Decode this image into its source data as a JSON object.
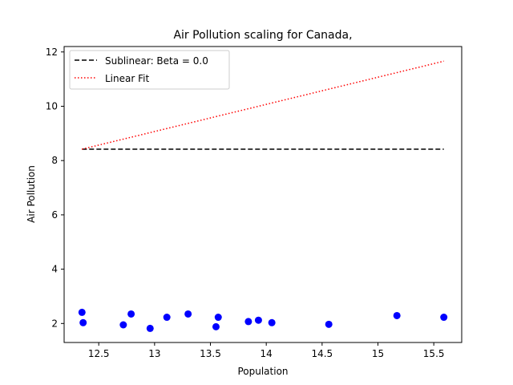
{
  "chart_data": {
    "type": "scatter",
    "title": "Air Pollution scaling for Canada,",
    "xlabel": "Population",
    "ylabel": "Air Pollution",
    "xlim": [
      12.19,
      15.75
    ],
    "ylim": [
      1.3,
      12.2
    ],
    "xticks": [
      12.5,
      13.0,
      13.5,
      14.0,
      14.5,
      15.0,
      15.5
    ],
    "yticks": [
      2,
      4,
      6,
      8,
      10,
      12
    ],
    "grid": false,
    "legend_position": "top-left",
    "points": {
      "color": "#0000ff",
      "x": [
        12.35,
        12.36,
        12.72,
        12.79,
        12.96,
        13.11,
        13.3,
        13.55,
        13.57,
        13.84,
        13.93,
        14.05,
        14.56,
        15.17,
        15.59
      ],
      "y": [
        2.41,
        2.03,
        1.95,
        2.35,
        1.82,
        2.23,
        2.35,
        1.88,
        2.23,
        2.07,
        2.12,
        2.03,
        1.97,
        2.29,
        2.23
      ]
    },
    "series": [
      {
        "name": "Sublinear: Beta = 0.0",
        "style": "dashed",
        "color": "#000000",
        "x": [
          12.35,
          15.59
        ],
        "y": [
          8.42,
          8.42
        ]
      },
      {
        "name": "Linear Fit",
        "style": "dotted",
        "color": "#ff0000",
        "x": [
          12.35,
          15.59
        ],
        "y": [
          8.42,
          11.66
        ]
      }
    ]
  }
}
